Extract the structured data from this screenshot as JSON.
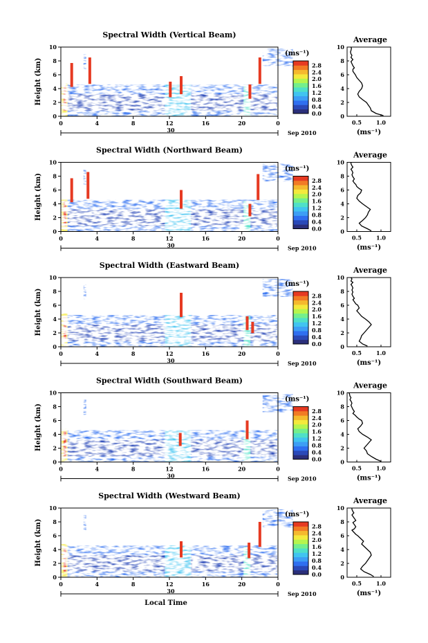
{
  "colors": {
    "colorbar": [
      "#2b2f7a",
      "#2a49b8",
      "#2f6ff0",
      "#3d9ef5",
      "#41c4f0",
      "#4fe0c8",
      "#74ef8c",
      "#b6f54e",
      "#f4e93c",
      "#f5b92e",
      "#f27b25",
      "#e63a22"
    ],
    "axis": "#000000",
    "profile_line": "#000000"
  },
  "chart_data": [
    {
      "type": "heatmap",
      "title": "Spectral Width (Vertical Beam)",
      "ylabel": "Height (km)",
      "xlim": [
        0,
        24
      ],
      "ylim": [
        0,
        10
      ],
      "x_ticks": [
        "0",
        "4",
        "8",
        "12",
        "16",
        "20",
        "0"
      ],
      "y_ticks": [
        "0",
        "2",
        "4",
        "6",
        "8",
        "10"
      ],
      "date_day": "30",
      "date_month": "Sep 2010",
      "colorbar_label": "(ms⁻¹)",
      "colorbar_ticks": [
        "0.0",
        "0.4",
        "0.8",
        "1.2",
        "1.6",
        "2.0",
        "2.4",
        "2.8"
      ],
      "clim": [
        0,
        2.8
      ],
      "cloud_heights_km": [
        {
          "t": 1.2,
          "h": 7.7
        },
        {
          "t": 3.2,
          "h": 8.5
        },
        {
          "t": 12.1,
          "h": 5.0
        },
        {
          "t": 13.3,
          "h": 5.8
        },
        {
          "t": 20.9,
          "h": 4.6
        },
        {
          "t": 22.0,
          "h": 8.5
        }
      ],
      "profile": {
        "title": "Average",
        "xlabel": "(ms⁻¹)",
        "x_ticks": [
          "0.5",
          "1.0"
        ],
        "y_ticks": [
          "0",
          "2",
          "4",
          "6",
          "8",
          "10"
        ],
        "xlim": [
          0.3,
          1.2
        ],
        "ylim": [
          0,
          10
        ],
        "x": [
          1.05,
          0.9,
          0.8,
          0.78,
          0.74,
          0.7,
          0.62,
          0.55,
          0.52,
          0.55,
          0.6,
          0.62,
          0.6,
          0.55,
          0.5,
          0.47,
          0.45,
          0.42,
          0.42,
          0.45,
          0.42,
          0.4,
          0.38,
          0.42,
          0.38,
          0.4,
          0.38,
          0.37,
          0.38,
          0.39,
          0.38
        ],
        "y": [
          0.1,
          0.4,
          0.8,
          1.2,
          1.6,
          2.0,
          2.4,
          2.8,
          3.2,
          3.6,
          4.0,
          4.4,
          4.8,
          5.2,
          5.6,
          6.0,
          6.2,
          6.5,
          6.8,
          7.0,
          7.3,
          7.6,
          7.9,
          8.2,
          8.5,
          8.8,
          9.0,
          9.3,
          9.5,
          9.8,
          10.0
        ]
      }
    },
    {
      "type": "heatmap",
      "title": "Spectral Width (Northward Beam)",
      "ylabel": "Height (km)",
      "xlim": [
        0,
        24
      ],
      "ylim": [
        0,
        10
      ],
      "x_ticks": [
        "0",
        "4",
        "8",
        "12",
        "16",
        "20",
        "0"
      ],
      "y_ticks": [
        "0",
        "2",
        "4",
        "6",
        "8",
        "10"
      ],
      "date_day": "30",
      "date_month": "Sep 2010",
      "colorbar_label": "(ms⁻¹)",
      "colorbar_ticks": [
        "0.0",
        "0.4",
        "0.8",
        "1.2",
        "1.6",
        "2.0",
        "2.4",
        "2.8"
      ],
      "clim": [
        0,
        2.8
      ],
      "cloud_heights_km": [
        {
          "t": 1.2,
          "h": 7.7
        },
        {
          "t": 3.0,
          "h": 8.6
        },
        {
          "t": 13.3,
          "h": 6.0
        },
        {
          "t": 20.9,
          "h": 4.0
        },
        {
          "t": 21.8,
          "h": 8.3
        }
      ],
      "profile": {
        "title": "Average",
        "xlabel": "(ms⁻¹)",
        "x_ticks": [
          "0.5",
          "1.0"
        ],
        "y_ticks": [
          "0",
          "2",
          "4",
          "6",
          "8",
          "10"
        ],
        "xlim": [
          0.3,
          1.2
        ],
        "ylim": [
          0,
          10
        ],
        "x": [
          0.8,
          0.72,
          0.6,
          0.55,
          0.62,
          0.68,
          0.72,
          0.74,
          0.78,
          0.7,
          0.62,
          0.55,
          0.5,
          0.52,
          0.58,
          0.6,
          0.55,
          0.5,
          0.48,
          0.45,
          0.42,
          0.45,
          0.42,
          0.4,
          0.42,
          0.4,
          0.38,
          0.42,
          0.4,
          0.38,
          0.38
        ],
        "y": [
          0.1,
          0.4,
          0.8,
          1.2,
          1.6,
          2.0,
          2.4,
          2.8,
          3.2,
          3.6,
          4.0,
          4.4,
          4.8,
          5.2,
          5.6,
          6.0,
          6.2,
          6.5,
          6.8,
          7.0,
          7.3,
          7.6,
          7.9,
          8.2,
          8.5,
          8.8,
          9.0,
          9.3,
          9.5,
          9.8,
          10.0
        ]
      }
    },
    {
      "type": "heatmap",
      "title": "Spectral Width (Eastward Beam)",
      "ylabel": "Height (km)",
      "xlim": [
        0,
        24
      ],
      "ylim": [
        0,
        10
      ],
      "x_ticks": [
        "0",
        "4",
        "8",
        "12",
        "16",
        "20",
        "0"
      ],
      "y_ticks": [
        "0",
        "2",
        "4",
        "6",
        "8",
        "10"
      ],
      "date_day": "30",
      "date_month": "Sep 2010",
      "colorbar_label": "(ms⁻¹)",
      "colorbar_ticks": [
        "0.0",
        "0.4",
        "0.8",
        "1.2",
        "1.6",
        "2.0",
        "2.4",
        "2.8"
      ],
      "clim": [
        0,
        2.8
      ],
      "cloud_heights_km": [
        {
          "t": 13.3,
          "h": 7.8
        },
        {
          "t": 20.6,
          "h": 4.4
        },
        {
          "t": 21.2,
          "h": 3.6
        }
      ],
      "profile": {
        "title": "Average",
        "xlabel": "(ms⁻¹)",
        "x_ticks": [
          "0.5",
          "1.0"
        ],
        "y_ticks": [
          "0",
          "2",
          "4",
          "6",
          "8",
          "10"
        ],
        "xlim": [
          0.3,
          1.2
        ],
        "ylim": [
          0,
          10
        ],
        "x": [
          0.72,
          0.62,
          0.55,
          0.58,
          0.6,
          0.65,
          0.7,
          0.75,
          0.8,
          0.75,
          0.68,
          0.6,
          0.55,
          0.5,
          0.55,
          0.52,
          0.48,
          0.45,
          0.42,
          0.45,
          0.42,
          0.4,
          0.42,
          0.4,
          0.42,
          0.4,
          0.38,
          0.42,
          0.38,
          0.4,
          0.38
        ],
        "y": [
          0.1,
          0.4,
          0.8,
          1.2,
          1.6,
          2.0,
          2.4,
          2.8,
          3.2,
          3.6,
          4.0,
          4.4,
          4.8,
          5.2,
          5.6,
          6.0,
          6.2,
          6.5,
          6.8,
          7.0,
          7.3,
          7.6,
          7.9,
          8.2,
          8.5,
          8.8,
          9.0,
          9.3,
          9.5,
          9.8,
          10.0
        ]
      }
    },
    {
      "type": "heatmap",
      "title": "Spectral Width (Southward Beam)",
      "ylabel": "Height (km)",
      "xlim": [
        0,
        24
      ],
      "ylim": [
        0,
        10
      ],
      "x_ticks": [
        "0",
        "4",
        "8",
        "12",
        "16",
        "20",
        "0"
      ],
      "y_ticks": [
        "0",
        "2",
        "4",
        "6",
        "8",
        "10"
      ],
      "date_day": "30",
      "date_month": "Sep 2010",
      "colorbar_label": "(ms⁻¹)",
      "colorbar_ticks": [
        "0.0",
        "0.4",
        "0.8",
        "1.2",
        "1.6",
        "2.0",
        "2.4",
        "2.8"
      ],
      "clim": [
        0,
        2.8
      ],
      "cloud_heights_km": [
        {
          "t": 13.2,
          "h": 4.2
        },
        {
          "t": 20.6,
          "h": 6.0
        }
      ],
      "profile": {
        "title": "Average",
        "xlabel": "(ms⁻¹)",
        "x_ticks": [
          "0.5",
          "1.0"
        ],
        "y_ticks": [
          "0",
          "2",
          "4",
          "6",
          "8",
          "10"
        ],
        "xlim": [
          0.3,
          1.2
        ],
        "ylim": [
          0,
          10
        ],
        "x": [
          1.0,
          0.9,
          0.8,
          0.72,
          0.7,
          0.65,
          0.7,
          0.75,
          0.8,
          0.72,
          0.62,
          0.55,
          0.52,
          0.58,
          0.62,
          0.6,
          0.55,
          0.5,
          0.46,
          0.42,
          0.45,
          0.42,
          0.4,
          0.38,
          0.4,
          0.38,
          0.36,
          0.38,
          0.36,
          0.35,
          0.34
        ],
        "y": [
          0.1,
          0.4,
          0.8,
          1.2,
          1.6,
          2.0,
          2.4,
          2.8,
          3.2,
          3.6,
          4.0,
          4.4,
          4.8,
          5.2,
          5.6,
          6.0,
          6.2,
          6.5,
          6.8,
          7.0,
          7.3,
          7.6,
          7.9,
          8.2,
          8.5,
          8.8,
          9.0,
          9.3,
          9.5,
          9.8,
          10.0
        ]
      }
    },
    {
      "type": "heatmap",
      "title": "Spectral Width (Westward Beam)",
      "ylabel": "Height (km)",
      "xlabel": "Local Time",
      "xlim": [
        0,
        24
      ],
      "ylim": [
        0,
        10
      ],
      "x_ticks": [
        "0",
        "4",
        "8",
        "12",
        "16",
        "20",
        "0"
      ],
      "y_ticks": [
        "0",
        "2",
        "4",
        "6",
        "8",
        "10"
      ],
      "date_day": "30",
      "date_month": "Sep 2010",
      "colorbar_label": "(ms⁻¹)",
      "colorbar_ticks": [
        "0.0",
        "0.4",
        "0.8",
        "1.2",
        "1.6",
        "2.0",
        "2.4",
        "2.8"
      ],
      "clim": [
        0,
        2.8
      ],
      "cloud_heights_km": [
        {
          "t": 13.3,
          "h": 5.2
        },
        {
          "t": 20.8,
          "h": 5.0
        },
        {
          "t": 22.0,
          "h": 8.0
        }
      ],
      "profile": {
        "title": "Average",
        "xlabel": "(ms⁻¹)",
        "x_ticks": [
          "0.5",
          "1.0"
        ],
        "y_ticks": [
          "0",
          "2",
          "4",
          "6",
          "8",
          "10"
        ],
        "xlim": [
          0.3,
          1.2
        ],
        "ylim": [
          0,
          10
        ],
        "x": [
          0.85,
          0.78,
          0.65,
          0.58,
          0.62,
          0.68,
          0.72,
          0.76,
          0.8,
          0.78,
          0.72,
          0.66,
          0.6,
          0.64,
          0.58,
          0.52,
          0.48,
          0.44,
          0.4,
          0.45,
          0.48,
          0.45,
          0.42,
          0.48,
          0.45,
          0.42,
          0.4,
          0.44,
          0.42,
          0.4,
          0.4
        ],
        "y": [
          0.1,
          0.4,
          0.8,
          1.2,
          1.6,
          2.0,
          2.4,
          2.8,
          3.2,
          3.6,
          4.0,
          4.4,
          4.8,
          5.2,
          5.6,
          6.0,
          6.2,
          6.5,
          6.8,
          7.0,
          7.3,
          7.6,
          7.9,
          8.2,
          8.5,
          8.8,
          9.0,
          9.3,
          9.5,
          9.8,
          10.0
        ]
      }
    }
  ]
}
